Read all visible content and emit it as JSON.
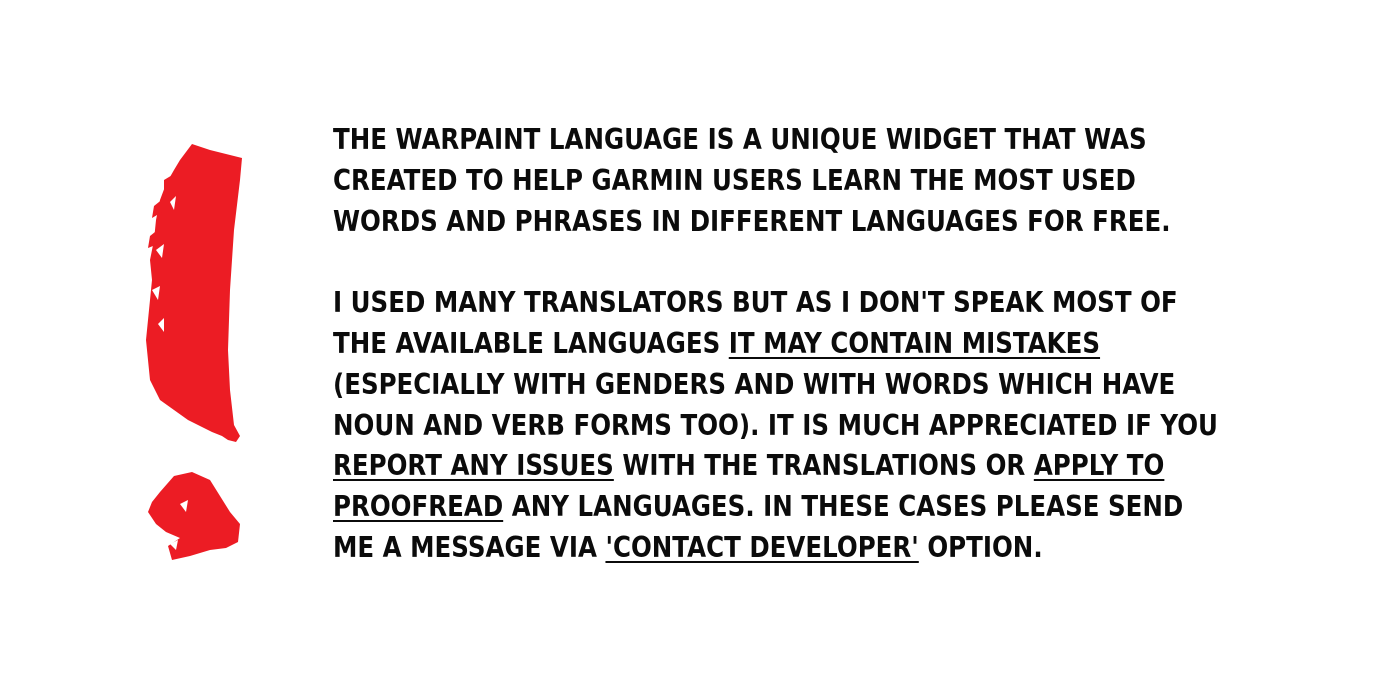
{
  "icon": {
    "name": "exclamation-mark-icon",
    "color": "#ec1c24"
  },
  "paragraph1": {
    "lines": [
      "The warpaint language is a unique widget that was",
      "created to help Garmin users learn the most used",
      "words and phrases in different languages for free."
    ]
  },
  "paragraph2": {
    "line1": "I used many translators but as I don't speak most of",
    "line2_prefix": "the available languages ",
    "line2_link": "it may contain mistakes",
    "line3": "(especially with genders and with words which have",
    "line4": "noun and verb forms too). It is much appreciated if you",
    "line5_link": "report any issues",
    "line5_middle": " with the translations or ",
    "line5_link2": "apply to",
    "line6_link": "proofread",
    "line6_suffix": " any languages. In these cases please send",
    "line7_prefix": "me a message via ",
    "line7_link": "'Contact Developer'",
    "line7_suffix": " option."
  }
}
